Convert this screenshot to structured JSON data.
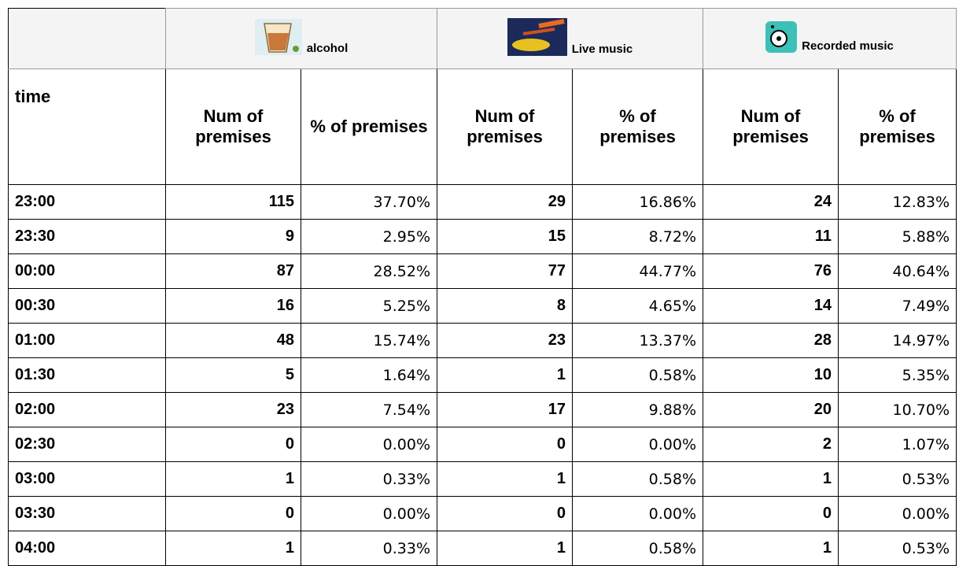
{
  "table": {
    "groups": [
      "alcohol",
      "Live music",
      "Recorded music"
    ],
    "columns": [
      "time",
      "Num of premises",
      "% of premises",
      "Num of premises",
      "% of premises",
      "Num of premises",
      "% of premises"
    ],
    "rows": [
      [
        "23:00",
        "115",
        "37.70%",
        "29",
        "16.86%",
        "24",
        "12.83%"
      ],
      [
        "23:30",
        "9",
        "2.95%",
        "15",
        "8.72%",
        "11",
        "5.88%"
      ],
      [
        "00:00",
        "87",
        "28.52%",
        "77",
        "44.77%",
        "76",
        "40.64%"
      ],
      [
        "00:30",
        "16",
        "5.25%",
        "8",
        "4.65%",
        "14",
        "7.49%"
      ],
      [
        "01:00",
        "48",
        "15.74%",
        "23",
        "13.37%",
        "28",
        "14.97%"
      ],
      [
        "01:30",
        "5",
        "1.64%",
        "1",
        "0.58%",
        "10",
        "5.35%"
      ],
      [
        "02:00",
        "23",
        "7.54%",
        "17",
        "9.88%",
        "20",
        "10.70%"
      ],
      [
        "02:30",
        "0",
        "0.00%",
        "0",
        "0.00%",
        "2",
        "1.07%"
      ],
      [
        "03:00",
        "1",
        "0.33%",
        "1",
        "0.58%",
        "1",
        "0.53%"
      ],
      [
        "03:30",
        "0",
        "0.00%",
        "0",
        "0.00%",
        "0",
        "0.00%"
      ],
      [
        "04:00",
        "1",
        "0.33%",
        "1",
        "0.58%",
        "1",
        "0.53%"
      ]
    ]
  }
}
